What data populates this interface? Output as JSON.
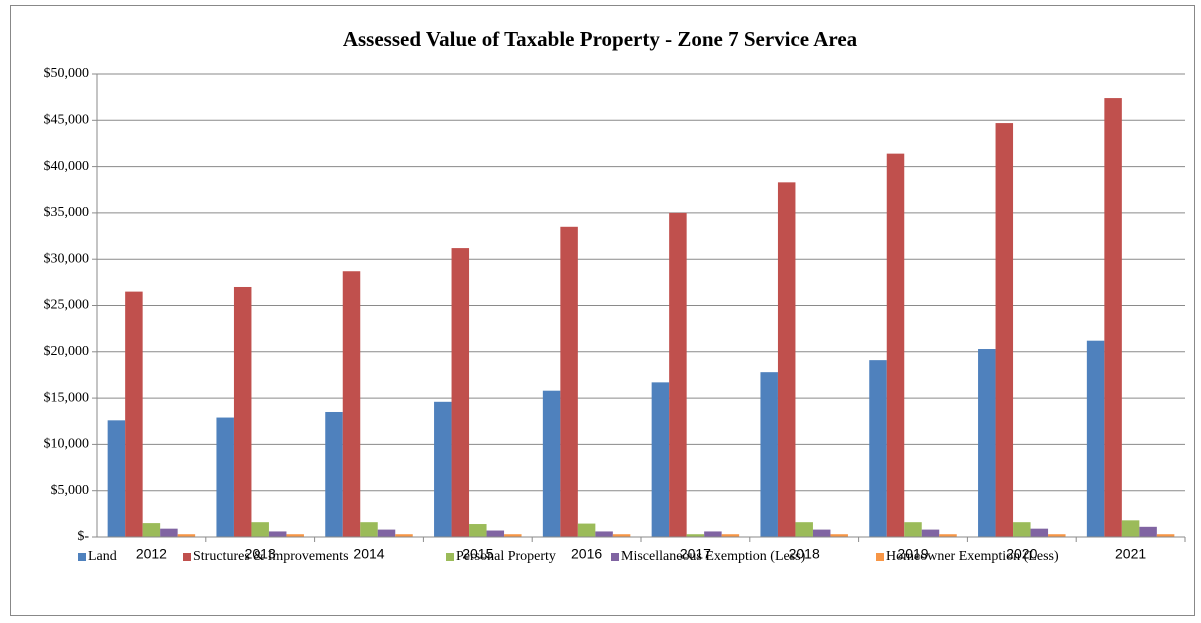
{
  "chart_data": {
    "type": "bar",
    "title": "Assessed Value of Taxable Property - Zone 7 Service Area",
    "categories": [
      "2012",
      "2013",
      "2014",
      "2015",
      "2016",
      "2017",
      "2018",
      "2019",
      "2020",
      "2021"
    ],
    "series": [
      {
        "name": "Land",
        "color": "#4f81bd",
        "values": [
          12600,
          12900,
          13500,
          14600,
          15800,
          16700,
          17800,
          19100,
          20300,
          21200
        ]
      },
      {
        "name": "Structures & Improvements",
        "color": "#c0504d",
        "values": [
          26500,
          27000,
          28700,
          31200,
          33500,
          35000,
          38300,
          41400,
          44700,
          47400
        ]
      },
      {
        "name": "Personal Property",
        "color": "#9bbb59",
        "values": [
          1500,
          1600,
          1600,
          1400,
          1450,
          300,
          1600,
          1600,
          1600,
          1800
        ]
      },
      {
        "name": "Miscellaneous Exemption (Less)",
        "color": "#8064a2",
        "values": [
          900,
          600,
          800,
          700,
          600,
          600,
          800,
          800,
          900,
          1100
        ]
      },
      {
        "name": "Homeowner Exemption (Less)",
        "color": "#f79646",
        "values": [
          300,
          300,
          300,
          300,
          300,
          300,
          300,
          300,
          300,
          300
        ]
      }
    ],
    "ylim": [
      0,
      50000
    ],
    "yticks": [
      {
        "value": 0,
        "label": "$-"
      },
      {
        "value": 5000,
        "label": "$5,000"
      },
      {
        "value": 10000,
        "label": "$10,000"
      },
      {
        "value": 15000,
        "label": "$15,000"
      },
      {
        "value": 20000,
        "label": "$20,000"
      },
      {
        "value": 25000,
        "label": "$25,000"
      },
      {
        "value": 30000,
        "label": "$30,000"
      },
      {
        "value": 35000,
        "label": "$35,000"
      },
      {
        "value": 40000,
        "label": "$40,000"
      },
      {
        "value": 45000,
        "label": "$45,000"
      },
      {
        "value": 50000,
        "label": "$50,000"
      }
    ],
    "grid": true,
    "legend": "bottom"
  }
}
